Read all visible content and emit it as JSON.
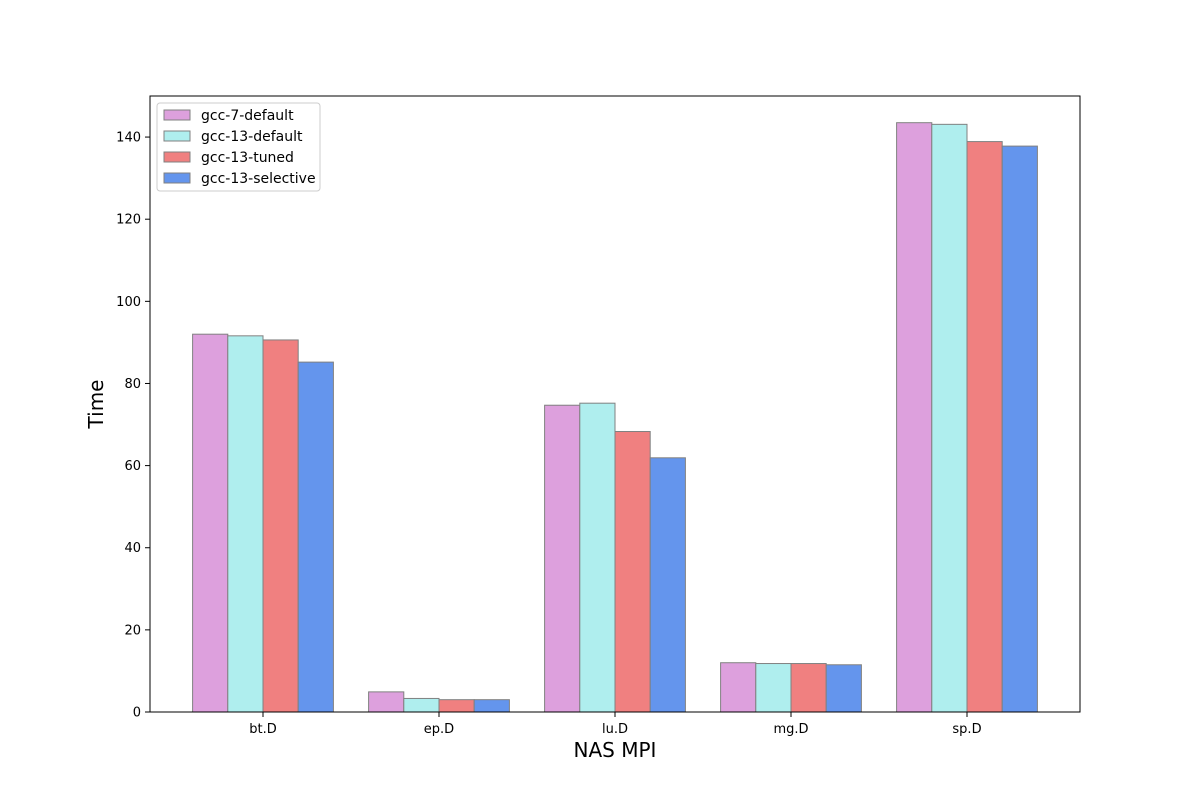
{
  "chart_data": {
    "type": "bar",
    "xlabel": "NAS MPI",
    "ylabel": "Time",
    "categories": [
      "bt.D",
      "ep.D",
      "lu.D",
      "mg.D",
      "sp.D"
    ],
    "ylim": [
      0,
      150
    ],
    "yticks": [
      0,
      20,
      40,
      60,
      80,
      100,
      120,
      140
    ],
    "grid": false,
    "legend_position": "top-left",
    "series": [
      {
        "name": "gcc-7-default",
        "color": "#dda0dd",
        "values": [
          92.0,
          4.9,
          74.7,
          12.0,
          143.5
        ]
      },
      {
        "name": "gcc-13-default",
        "color": "#afeeee",
        "values": [
          91.6,
          3.3,
          75.2,
          11.8,
          143.1
        ]
      },
      {
        "name": "gcc-13-tuned",
        "color": "#f08080",
        "values": [
          90.6,
          3.0,
          68.3,
          11.8,
          138.9
        ]
      },
      {
        "name": "gcc-13-selective",
        "color": "#6495ed",
        "values": [
          85.2,
          3.0,
          61.9,
          11.5,
          137.8
        ]
      }
    ]
  }
}
